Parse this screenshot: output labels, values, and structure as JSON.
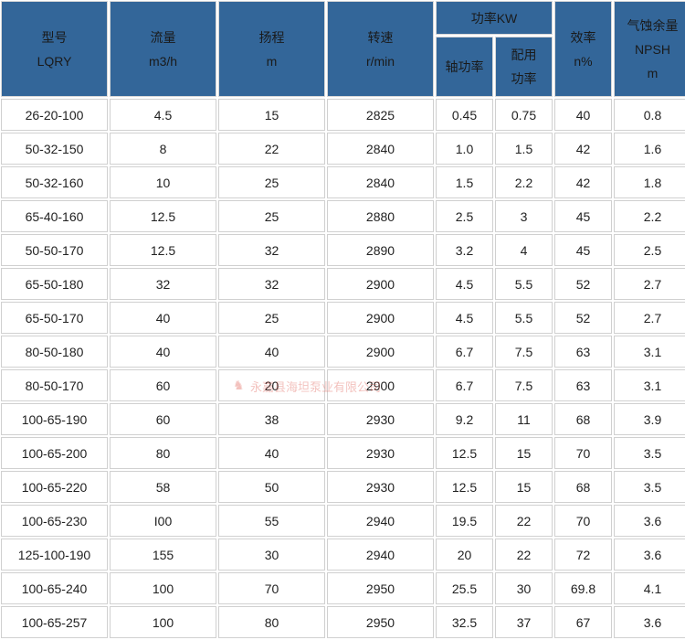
{
  "headers": {
    "model": [
      "型号",
      "LQRY"
    ],
    "flow": [
      "流量",
      "m3/h"
    ],
    "head": [
      "扬程",
      "m"
    ],
    "speed": [
      "转速",
      "r/min"
    ],
    "power": "功率KW",
    "shaft_power": "轴功率",
    "motor_power": [
      "配用",
      "功率"
    ],
    "efficiency": [
      "效率",
      "n%"
    ],
    "npsh": [
      "气蚀余量",
      "NPSH",
      "m"
    ]
  },
  "rows": [
    [
      "26-20-100",
      "4.5",
      "15",
      "2825",
      "0.45",
      "0.75",
      "40",
      "0.8"
    ],
    [
      "50-32-150",
      "8",
      "22",
      "2840",
      "1.0",
      "1.5",
      "42",
      "1.6"
    ],
    [
      "50-32-160",
      "10",
      "25",
      "2840",
      "1.5",
      "2.2",
      "42",
      "1.8"
    ],
    [
      "65-40-160",
      "12.5",
      "25",
      "2880",
      "2.5",
      "3",
      "45",
      "2.2"
    ],
    [
      "50-50-170",
      "12.5",
      "32",
      "2890",
      "3.2",
      "4",
      "45",
      "2.5"
    ],
    [
      "65-50-180",
      "32",
      "32",
      "2900",
      "4.5",
      "5.5",
      "52",
      "2.7"
    ],
    [
      "65-50-170",
      "40",
      "25",
      "2900",
      "4.5",
      "5.5",
      "52",
      "2.7"
    ],
    [
      "80-50-180",
      "40",
      "40",
      "2900",
      "6.7",
      "7.5",
      "63",
      "3.1"
    ],
    [
      "80-50-170",
      "60",
      "20",
      "2900",
      "6.7",
      "7.5",
      "63",
      "3.1"
    ],
    [
      "100-65-190",
      "60",
      "38",
      "2930",
      "9.2",
      "11",
      "68",
      "3.9"
    ],
    [
      "100-65-200",
      "80",
      "40",
      "2930",
      "12.5",
      "15",
      "70",
      "3.5"
    ],
    [
      "100-65-220",
      "58",
      "50",
      "2930",
      "12.5",
      "15",
      "68",
      "3.5"
    ],
    [
      "100-65-230",
      "I00",
      "55",
      "2940",
      "19.5",
      "22",
      "70",
      "3.6"
    ],
    [
      "125-100-190",
      "155",
      "30",
      "2940",
      "20",
      "22",
      "72",
      "3.6"
    ],
    [
      "100-65-240",
      "100",
      "70",
      "2950",
      "25.5",
      "30",
      "69.8",
      "4.1"
    ],
    [
      "100-65-257",
      "100",
      "80",
      "2950",
      "32.5",
      "37",
      "67",
      "3.6"
    ]
  ],
  "watermark": "永嘉县海坦泵业有限公司",
  "colors": {
    "header_bg": "#336699",
    "border": "#d0d0d0"
  }
}
